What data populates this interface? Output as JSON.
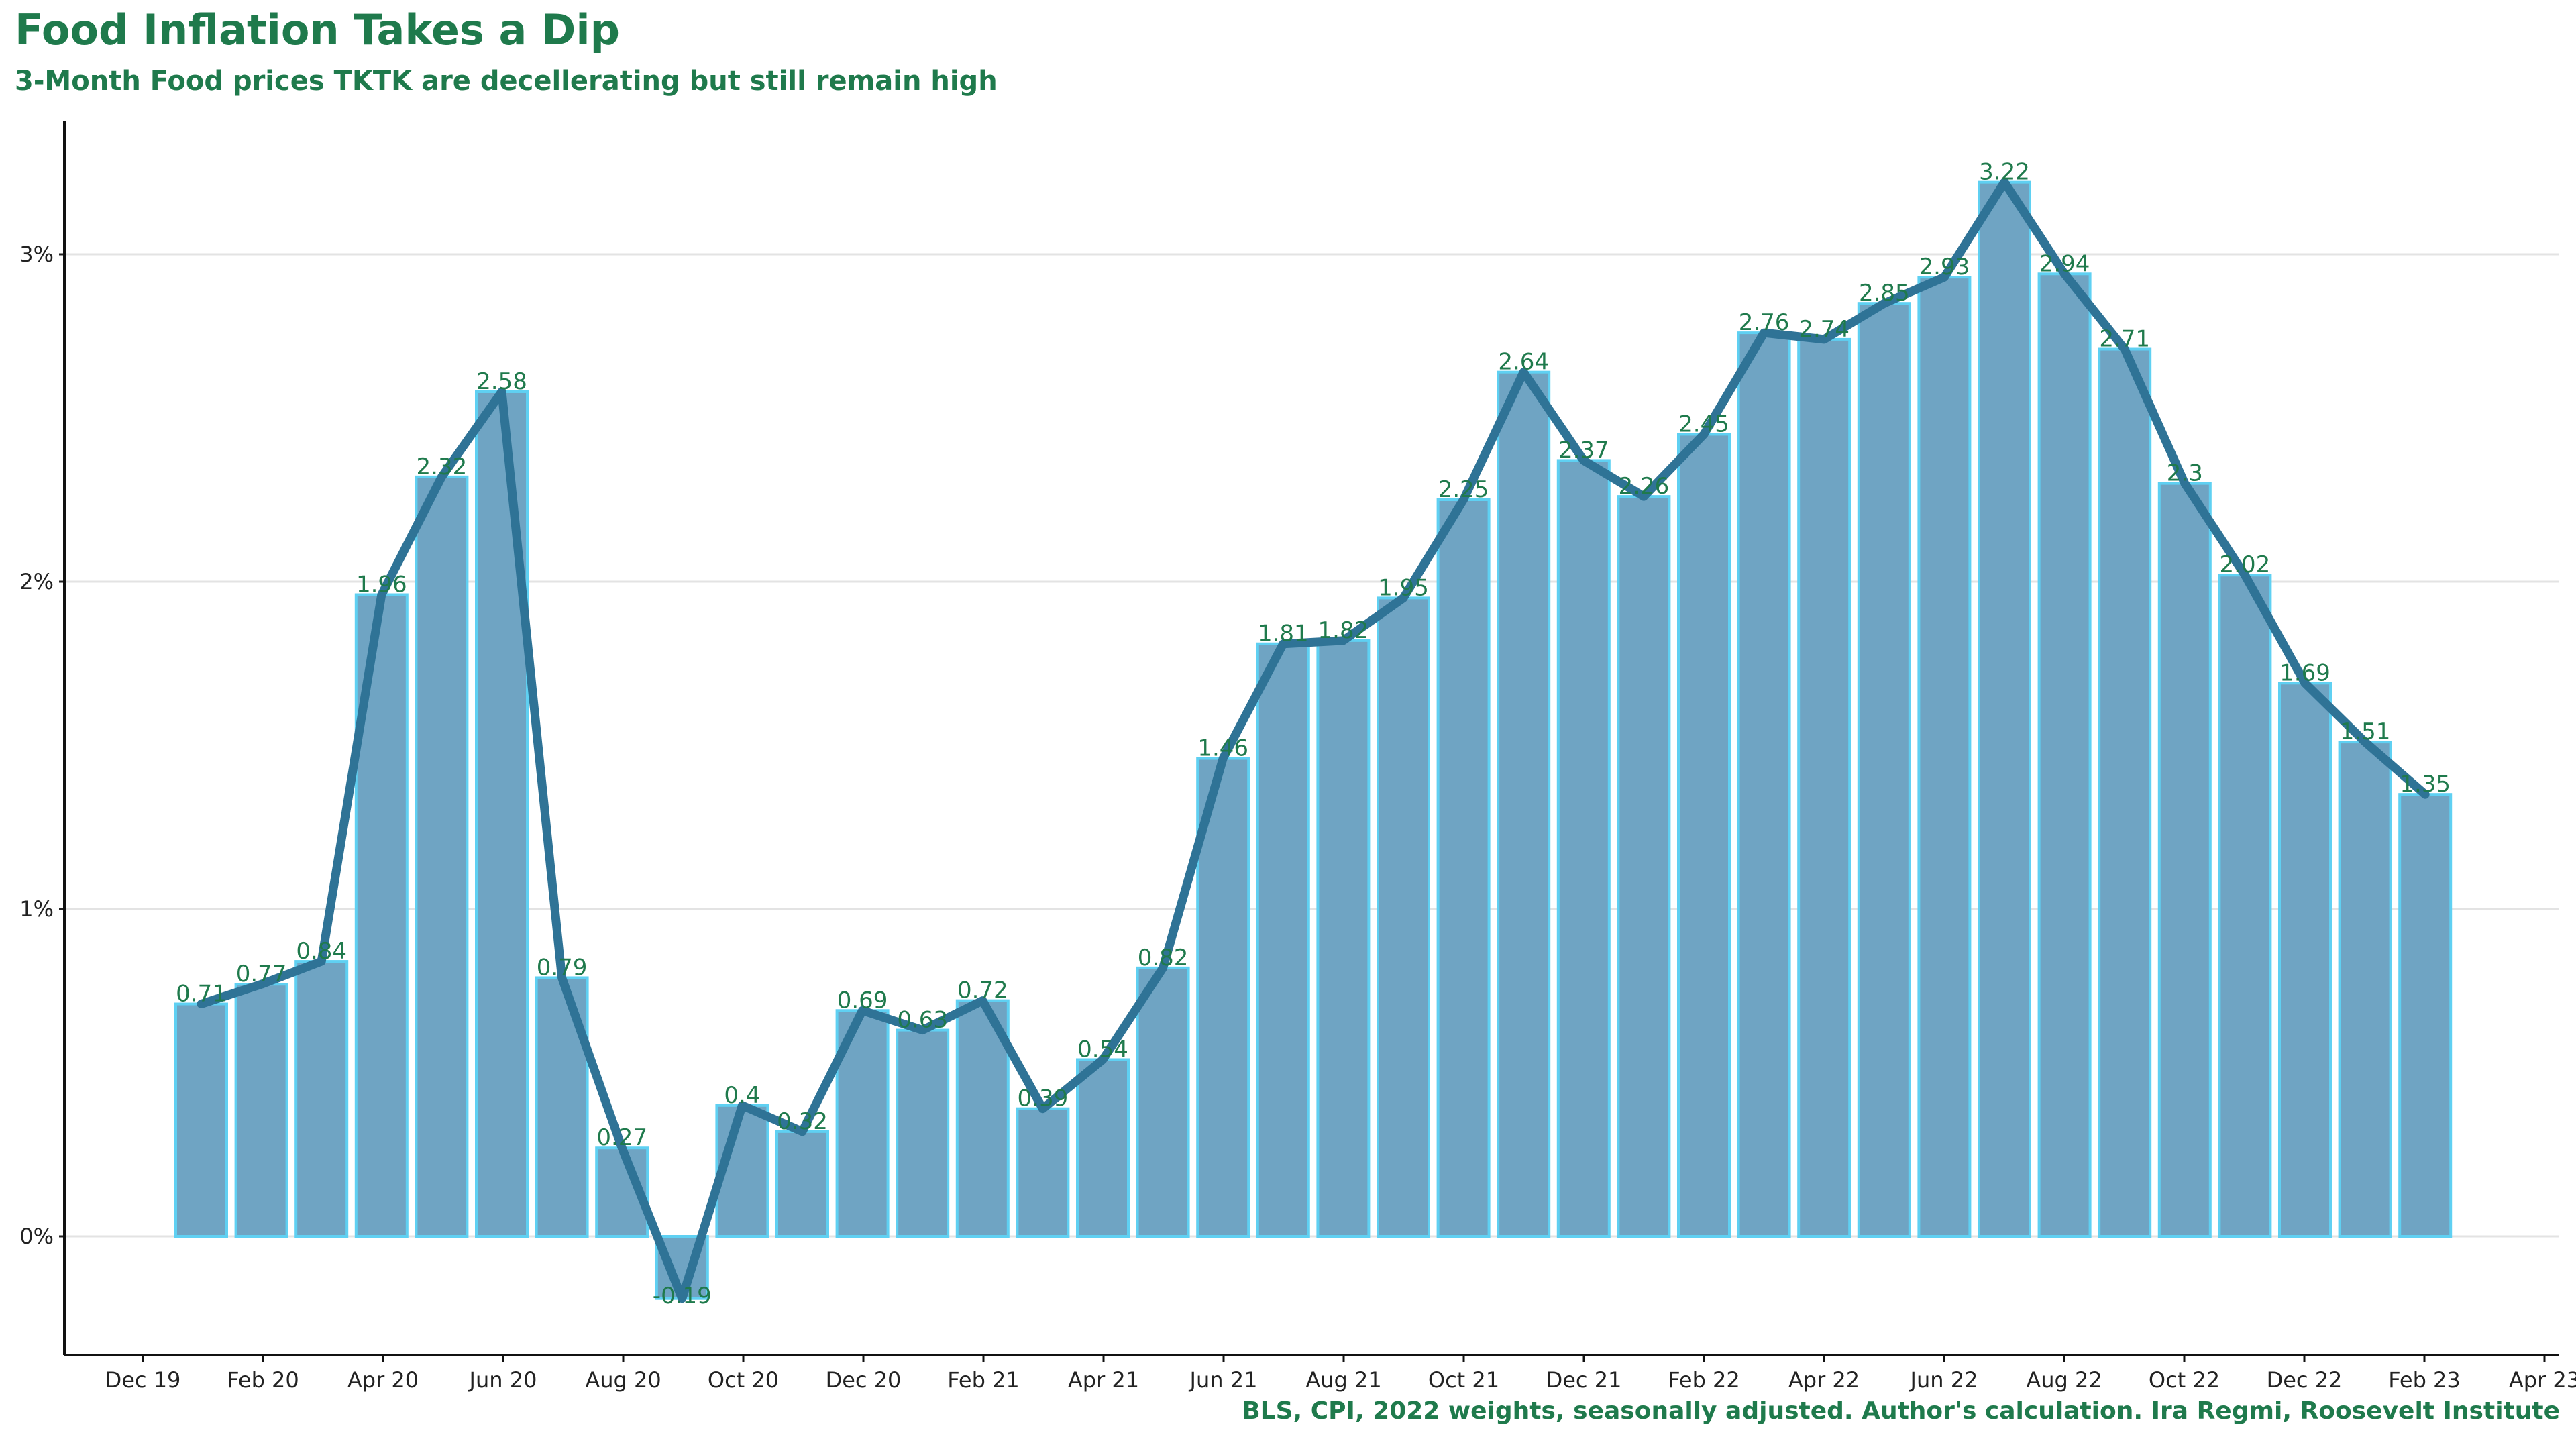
{
  "header": {
    "title": "Food Inflation Takes a Dip",
    "subtitle": "3-Month Food prices TKTK are decellerating but still remain high"
  },
  "footer": {
    "caption": "BLS, CPI, 2022 weights, seasonally adjusted. Author's calculation. Ira Regmi, Roosevelt Institute"
  },
  "colors": {
    "title": "#1f7a4c",
    "bar_fill": "#6fa4c3",
    "bar_outline": "#5fd0f2",
    "line": "#2f7396",
    "label": "#1f7a4c",
    "grid": "#e3e3e3"
  },
  "chart_data": {
    "type": "bar",
    "title": "Food Inflation Takes a Dip",
    "subtitle": "3-Month Food prices TKTK are decellerating but still remain high",
    "xlabel": "",
    "ylabel": "",
    "x_tick_labels": [
      "Dec 19",
      "Feb 20",
      "Apr 20",
      "Jun 20",
      "Aug 20",
      "Oct 20",
      "Dec 20",
      "Feb 21",
      "Apr 21",
      "Jun 21",
      "Aug 21",
      "Oct 21",
      "Dec 21",
      "Feb 22",
      "Apr 22",
      "Jun 22",
      "Aug 22",
      "Oct 22",
      "Dec 22",
      "Feb 23",
      "Apr 23"
    ],
    "y_ticks": [
      0,
      1,
      2,
      3
    ],
    "y_tick_labels": [
      "0%",
      "1%",
      "2%",
      "3%"
    ],
    "ylim": [
      -0.35,
      3.4
    ],
    "grid": true,
    "legend": "none",
    "overlay": "line through bar tops",
    "categories": [
      "Jan 20",
      "Feb 20",
      "Mar 20",
      "Apr 20",
      "May 20",
      "Jun 20",
      "Jul 20",
      "Aug 20",
      "Sep 20",
      "Oct 20",
      "Nov 20",
      "Dec 20",
      "Jan 21",
      "Feb 21",
      "Mar 21",
      "Apr 21",
      "May 21",
      "Jun 21",
      "Jul 21",
      "Aug 21",
      "Sep 21",
      "Oct 21",
      "Nov 21",
      "Dec 21",
      "Jan 22",
      "Feb 22",
      "Mar 22",
      "Apr 22",
      "May 22",
      "Jun 22",
      "Jul 22",
      "Aug 22",
      "Sep 22",
      "Oct 22",
      "Nov 22",
      "Dec 22",
      "Jan 23",
      "Feb 23"
    ],
    "values": [
      0.71,
      0.77,
      0.84,
      1.96,
      2.32,
      2.58,
      0.79,
      0.27,
      -0.19,
      0.4,
      0.32,
      0.69,
      0.63,
      0.72,
      0.39,
      0.54,
      0.82,
      1.46,
      1.81,
      1.82,
      1.95,
      2.25,
      2.64,
      2.37,
      2.26,
      2.45,
      2.76,
      2.74,
      2.85,
      2.93,
      3.22,
      2.94,
      2.71,
      2.3,
      2.02,
      1.69,
      1.51,
      1.35
    ],
    "value_labels": [
      "0.71",
      "0.77",
      "0.84",
      "1.96",
      "2.32",
      "2.58",
      "0.79",
      "0.27",
      "-0.19",
      "0.4",
      "0.32",
      "0.69",
      "0.63",
      "0.72",
      "0.39",
      "0.54",
      "0.82",
      "1.46",
      "1.81",
      "1.82",
      "1.95",
      "2.25",
      "2.64",
      "2.37",
      "2.26",
      "2.45",
      "2.76",
      "2.74",
      "2.85",
      "2.93",
      "3.22",
      "2.94",
      "2.71",
      "2.3",
      "2.02",
      "1.69",
      "1.51",
      "1.35"
    ]
  }
}
